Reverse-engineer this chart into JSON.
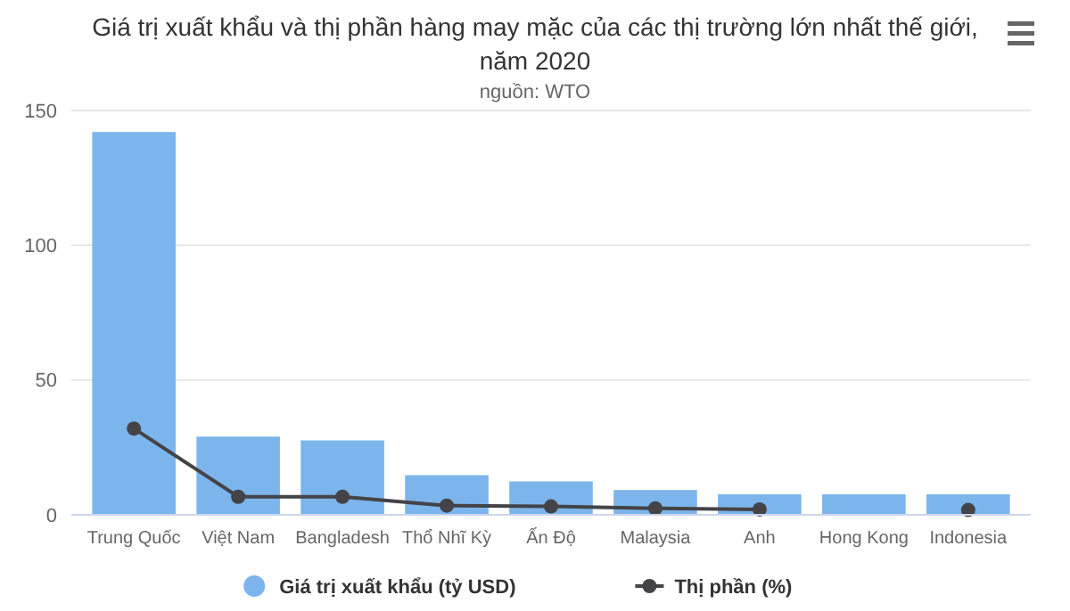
{
  "chart_data": {
    "type": "bar",
    "title": "Giá trị xuất khẩu và thị phần hàng may mặc của các thị trường lớn nhất thế giới, năm 2020",
    "subtitle": "nguồn: WTO",
    "categories": [
      "Trung Quốc",
      "Việt Nam",
      "Bangladesh",
      "Thổ Nhĩ Kỳ",
      "Ấn Độ",
      "Malaysia",
      "Anh",
      "Hong Kong",
      "Indonesia"
    ],
    "series": [
      {
        "name": "Giá trị xuất khẩu (tỷ USD)",
        "color": "#7cb5ec",
        "values": [
          142,
          29,
          27.6,
          14.7,
          12.4,
          9.2,
          7.6,
          7.6,
          7.6
        ]
      },
      {
        "name": "Thị phần (%)",
        "type": "line",
        "color": "#434348",
        "values": [
          32,
          6.7,
          6.7,
          3.4,
          3.1,
          2.4,
          2,
          null,
          1.8
        ]
      }
    ],
    "ylim": [
      0,
      150
    ],
    "yticks": [
      0,
      50,
      100,
      150
    ],
    "grid": "y",
    "legend": "bottom",
    "marker": "circle",
    "line_style": "solid"
  }
}
